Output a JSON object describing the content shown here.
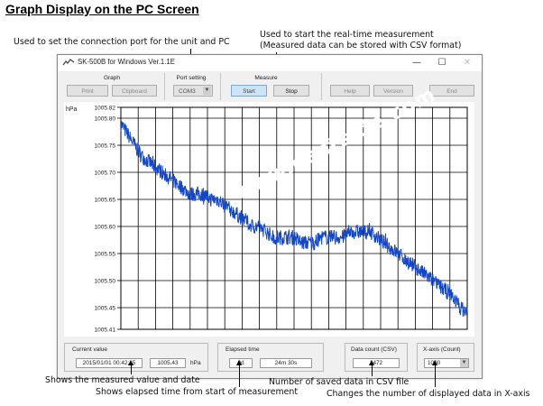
{
  "heading": "Graph Display on the PC Screen",
  "annotations": {
    "port": "Used to set the connection port for the unit and PC",
    "realtime_line1": "Used to start the real-time measurement",
    "realtime_line2": "(Measured data can be stored with CSV format)",
    "measured": "Shows the measured value and date",
    "elapsed": "Shows elapsed time from start of measurement",
    "saved": "Number of saved data in CSV file",
    "xaxis": "Changes the number of displayed data in X-axis"
  },
  "window": {
    "title": "SK-500B for Windows Ver.1.1E",
    "controls": {
      "minimize": "—",
      "maximize": "☐",
      "close": "✕"
    }
  },
  "toolbar": {
    "graph_label": "Graph",
    "print": "Print",
    "clipboard": "Clipboard",
    "port_label": "Port setting",
    "port_value": "COM3",
    "measure_label": "Measure",
    "start": "Start",
    "stop": "Stop",
    "help": "Help",
    "version": "Version",
    "end": "End"
  },
  "status": {
    "current_label": "Current value",
    "current_datetime": "2015/01/01 00:42:15",
    "current_value": "1005.43",
    "current_unit": "hPa",
    "elapsed_label": "Elapsed time",
    "elapsed_days": "0d",
    "elapsed_time": "24m 30s",
    "count_label": "Data count (CSV)",
    "count_value": "1472",
    "xaxis_label": "X-axis (Count)",
    "xaxis_value": "1000"
  },
  "watermark": "www.eastside.com",
  "colors": {
    "series": "#1446c8",
    "grid": "#000000",
    "window_bg": "#f0f0f0",
    "active_button": "#cfe3f7"
  },
  "chart_data": {
    "type": "line",
    "ylabel": "hPa",
    "ylim": [
      1005.41,
      1005.82
    ],
    "yticks": [
      "1005.82",
      "1005.80",
      "1005.75",
      "1005.70",
      "1005.65",
      "1005.60",
      "1005.55",
      "1005.50",
      "1005.45",
      "1005.41"
    ],
    "xlim": [
      0,
      1000
    ],
    "grid": true,
    "series": [
      {
        "x": [
          0,
          20,
          40,
          60,
          80,
          100,
          120,
          140,
          160,
          180,
          200,
          220,
          240,
          260,
          280,
          300,
          320,
          340,
          360,
          380,
          400,
          420,
          440,
          460,
          480,
          500,
          520,
          540,
          560,
          580,
          600,
          620,
          640,
          660,
          680,
          700,
          720,
          740,
          760,
          780,
          800,
          820,
          840,
          860,
          880,
          900,
          920,
          940,
          960,
          980,
          1000
        ],
        "values": [
          1005.79,
          1005.77,
          1005.75,
          1005.73,
          1005.72,
          1005.71,
          1005.7,
          1005.69,
          1005.68,
          1005.67,
          1005.66,
          1005.66,
          1005.66,
          1005.65,
          1005.65,
          1005.64,
          1005.63,
          1005.62,
          1005.61,
          1005.6,
          1005.6,
          1005.59,
          1005.58,
          1005.58,
          1005.58,
          1005.58,
          1005.57,
          1005.57,
          1005.57,
          1005.58,
          1005.58,
          1005.58,
          1005.58,
          1005.59,
          1005.59,
          1005.59,
          1005.59,
          1005.58,
          1005.57,
          1005.56,
          1005.55,
          1005.54,
          1005.53,
          1005.52,
          1005.51,
          1005.5,
          1005.49,
          1005.48,
          1005.47,
          1005.45,
          1005.44
        ]
      }
    ]
  }
}
